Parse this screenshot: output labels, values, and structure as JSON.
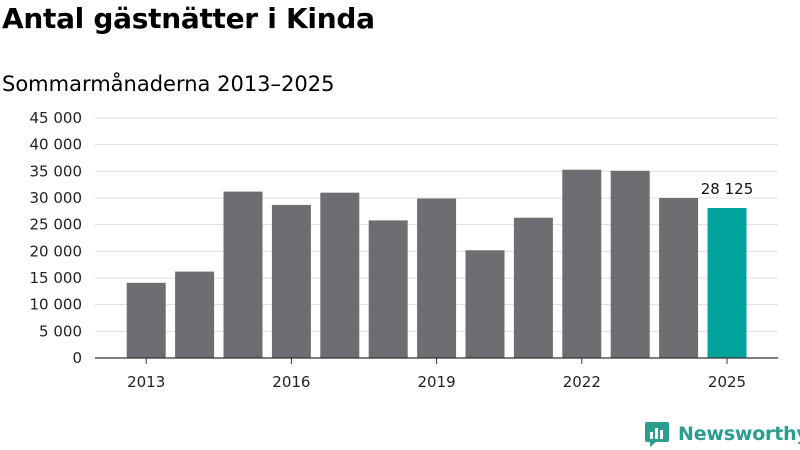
{
  "title": "Antal gästnätter i Kinda",
  "subtitle": "Sommarmånaderna 2013–2025",
  "logo": {
    "text": "Newsworthy",
    "icon": "newsworthy-logo-icon"
  },
  "colors": {
    "bar": "#6e6d72",
    "highlight": "#00a39b",
    "grid": "#dddddd",
    "axis": "#333333",
    "logo": "#2a9d8f"
  },
  "chart_data": {
    "type": "bar",
    "title": "Antal gästnätter i Kinda",
    "subtitle": "Sommarmånaderna 2013–2025",
    "xlabel": "",
    "ylabel": "",
    "categories": [
      "2013",
      "2014",
      "2015",
      "2016",
      "2017",
      "2018",
      "2019",
      "2020",
      "2021",
      "2022",
      "2023",
      "2024",
      "2025"
    ],
    "values": [
      14100,
      16200,
      31200,
      28700,
      31000,
      25800,
      29900,
      20200,
      26300,
      35300,
      35100,
      30000,
      28125
    ],
    "x_tick_labels": [
      "2013",
      "2016",
      "2019",
      "2022",
      "2025"
    ],
    "y_ticks": [
      0,
      5000,
      10000,
      15000,
      20000,
      25000,
      30000,
      35000,
      40000,
      45000
    ],
    "y_tick_labels": [
      "0",
      "5 000",
      "10 000",
      "15 000",
      "20 000",
      "25 000",
      "30 000",
      "35 000",
      "40 000",
      "45 000"
    ],
    "ylim": [
      0,
      45000
    ],
    "grid": true,
    "highlight_category": "2025",
    "annotations": [
      {
        "category": "2025",
        "text": "28 125"
      }
    ]
  }
}
